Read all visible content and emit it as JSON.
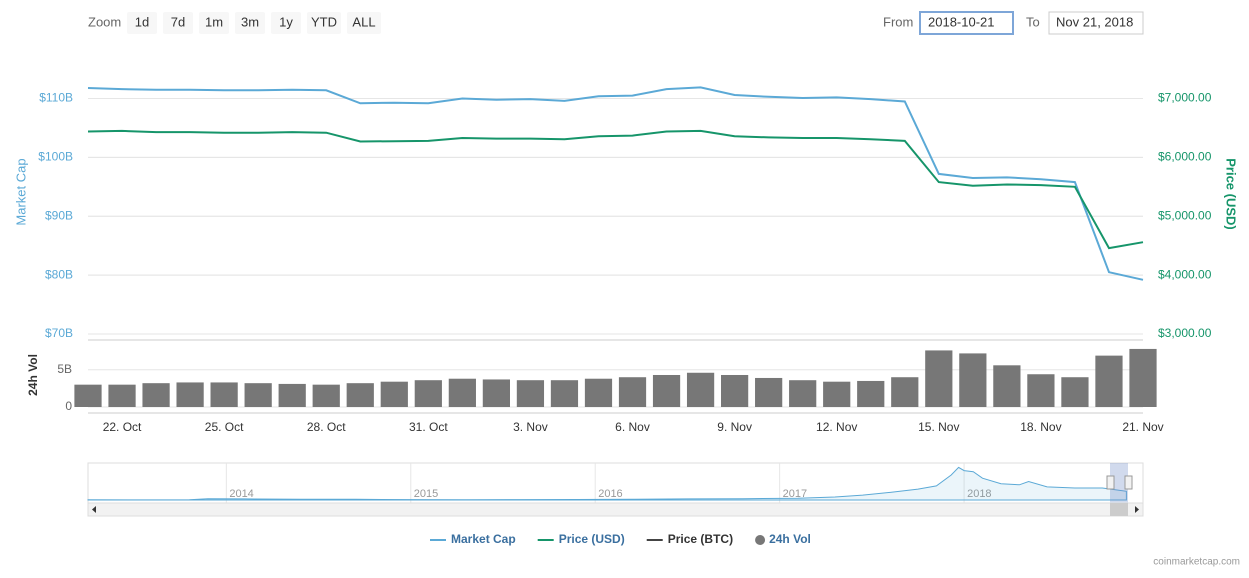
{
  "toolbar": {
    "zoom_label": "Zoom",
    "buttons": [
      "1d",
      "7d",
      "1m",
      "3m",
      "1y",
      "YTD",
      "ALL"
    ],
    "from_label": "From",
    "from": "2018-10-21",
    "to_label": "To",
    "to": "Nov 21, 2018"
  },
  "chart_data": [
    {
      "type": "line",
      "categories": [
        null,
        "22. Oct",
        null,
        null,
        "25. Oct",
        null,
        null,
        "28. Oct",
        null,
        null,
        "31. Oct",
        null,
        null,
        "3. Nov",
        null,
        null,
        "6. Nov",
        null,
        null,
        "9. Nov",
        null,
        null,
        "12. Nov",
        null,
        null,
        "15. Nov",
        null,
        null,
        "18. Nov",
        null,
        null,
        "21. Nov"
      ],
      "series": [
        {
          "name": "Market Cap",
          "color": "#5ba9d6",
          "axis": "y",
          "type": "line",
          "values": [
            111.8,
            111.6,
            111.5,
            111.5,
            111.4,
            111.4,
            111.5,
            111.4,
            109.2,
            109.3,
            109.2,
            110.0,
            109.8,
            109.9,
            109.6,
            110.4,
            110.5,
            111.6,
            111.9,
            110.6,
            110.3,
            110.1,
            110.2,
            109.9,
            109.5,
            97.2,
            96.5,
            96.6,
            96.3,
            95.8,
            80.5,
            79.2
          ]
        },
        {
          "name": "Price (USD)",
          "color": "#16956a",
          "axis": "y2",
          "type": "line",
          "values": [
            6440,
            6450,
            6430,
            6430,
            6420,
            6420,
            6430,
            6420,
            6270,
            6275,
            6280,
            6330,
            6320,
            6320,
            6310,
            6360,
            6370,
            6440,
            6450,
            6360,
            6340,
            6330,
            6330,
            6310,
            6280,
            5580,
            5520,
            5540,
            5530,
            5500,
            4460,
            4560
          ]
        },
        {
          "name": "Price (BTC)",
          "color": "#444444",
          "axis": "y2",
          "type": "line",
          "visible": false,
          "values": [
            null,
            null,
            null,
            null,
            null,
            null,
            null,
            null,
            null,
            null,
            null,
            null,
            null,
            null,
            null,
            null,
            null,
            null,
            null,
            null,
            null,
            null,
            null,
            null,
            null,
            null,
            null,
            null,
            null,
            null,
            null,
            null
          ]
        },
        {
          "name": "24h Vol",
          "color": "#777777",
          "axis": "vol",
          "type": "bar",
          "values": [
            3.0,
            3.0,
            3.2,
            3.3,
            3.3,
            3.2,
            3.1,
            3.0,
            3.2,
            3.4,
            3.6,
            3.8,
            3.7,
            3.6,
            3.6,
            3.8,
            4.0,
            4.3,
            4.6,
            4.3,
            3.9,
            3.6,
            3.4,
            3.5,
            4.0,
            7.6,
            7.2,
            5.6,
            4.4,
            4.0,
            6.9,
            7.8
          ]
        }
      ],
      "y_label": "Market Cap",
      "ylim": [
        70,
        114
      ],
      "yticks": [
        {
          "value": 70,
          "label": "$70B"
        },
        {
          "value": 80,
          "label": "$80B"
        },
        {
          "value": 90,
          "label": "$90B"
        },
        {
          "value": 100,
          "label": "$100B"
        },
        {
          "value": 110,
          "label": "$110B"
        }
      ],
      "y2_label": "Price (USD)",
      "y2lim": [
        3000,
        7400
      ],
      "y2ticks": [
        {
          "value": 3000,
          "label": "$3,000.00"
        },
        {
          "value": 4000,
          "label": "$4,000.00"
        },
        {
          "value": 5000,
          "label": "$5,000.00"
        },
        {
          "value": 6000,
          "label": "$6,000.00"
        },
        {
          "value": 7000,
          "label": "$7,000.00"
        }
      ],
      "vol_label": "24h Vol",
      "vol_lim": [
        0,
        9
      ],
      "vol_ticks": [
        0,
        {
          "value": 5,
          "label": "5B"
        }
      ],
      "grid": true
    },
    {
      "type": "area",
      "color": "#5ba9d6",
      "x": [
        2013.25,
        2013.5,
        2013.8,
        2013.9,
        2014.1,
        2014.4,
        2014.7,
        2015.0,
        2015.3,
        2015.6,
        2015.9,
        2016.2,
        2016.5,
        2016.8,
        2017.1,
        2017.3,
        2017.45,
        2017.6,
        2017.75,
        2017.85,
        2017.93,
        2017.97,
        2018.0,
        2018.05,
        2018.1,
        2018.2,
        2018.3,
        2018.35,
        2018.45,
        2018.6,
        2018.75,
        2018.88
      ],
      "values": [
        1.5,
        1.2,
        2,
        12,
        10,
        7,
        6,
        3.5,
        3.2,
        3.5,
        5,
        6.5,
        10,
        12,
        16,
        28,
        45,
        70,
        100,
        130,
        230,
        300,
        270,
        260,
        200,
        150,
        140,
        170,
        120,
        110,
        110,
        80
      ],
      "xlim": [
        2013.25,
        2018.97
      ],
      "ylim": [
        0,
        340
      ],
      "xticks": [
        2014,
        2015,
        2016,
        2017,
        2018
      ]
    }
  ],
  "credit": "coinmarketcap.com"
}
